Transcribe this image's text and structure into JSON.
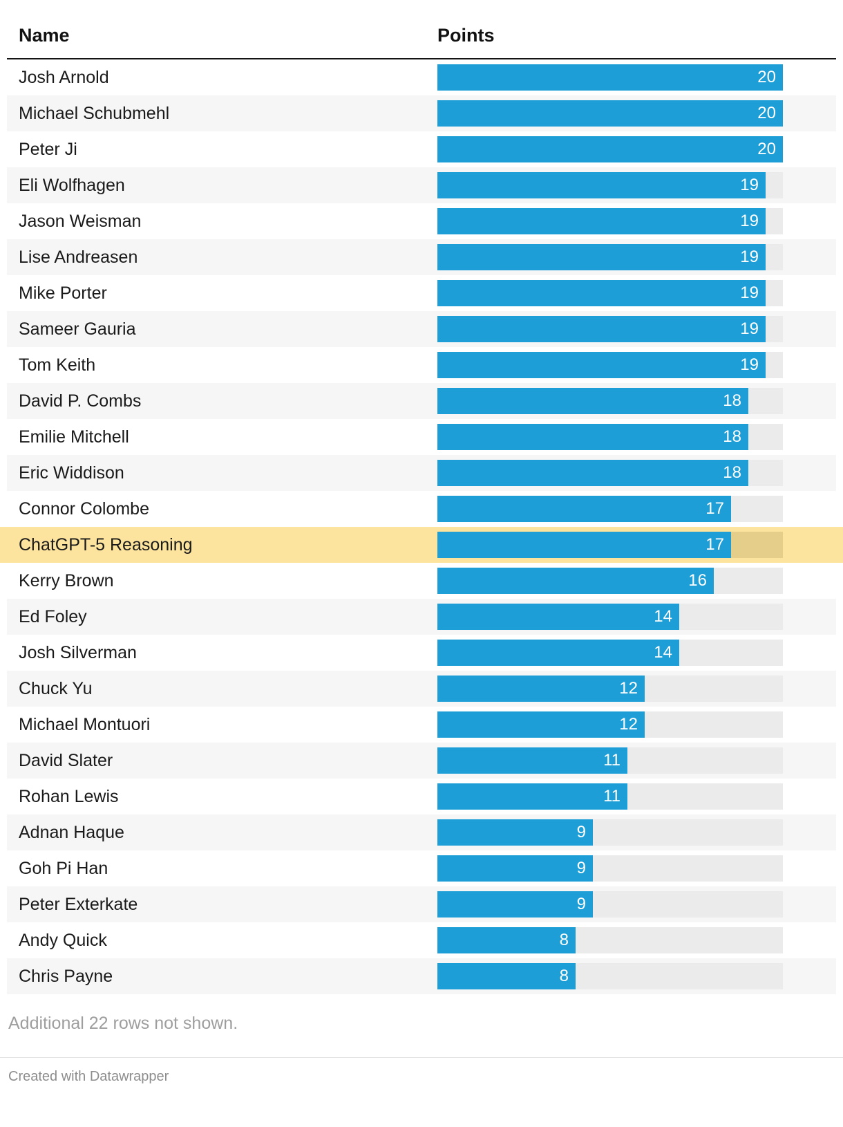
{
  "header": {
    "name_label": "Name",
    "points_label": "Points"
  },
  "footer": {
    "note": "Additional 22 rows not shown.",
    "credit": "Created with Datawrapper"
  },
  "colors": {
    "bar": "#1d9ed6",
    "track": "#ebebeb",
    "row_alt": "#f6f6f6",
    "highlight_row": "#fce49e",
    "highlight_track": "#e5cd8a",
    "value_text": "#ffffff"
  },
  "chart_data": {
    "type": "bar",
    "orientation": "horizontal",
    "title": "",
    "xlabel": "Points",
    "ylabel": "Name",
    "max_value": 20,
    "highlighted_row": "ChatGPT-5 Reasoning",
    "rows": [
      {
        "name": "Josh Arnold",
        "points": 20,
        "highlight": false
      },
      {
        "name": "Michael Schubmehl",
        "points": 20,
        "highlight": false
      },
      {
        "name": "Peter Ji",
        "points": 20,
        "highlight": false
      },
      {
        "name": "Eli Wolfhagen",
        "points": 19,
        "highlight": false
      },
      {
        "name": "Jason Weisman",
        "points": 19,
        "highlight": false
      },
      {
        "name": "Lise Andreasen",
        "points": 19,
        "highlight": false
      },
      {
        "name": "Mike Porter",
        "points": 19,
        "highlight": false
      },
      {
        "name": "Sameer Gauria",
        "points": 19,
        "highlight": false
      },
      {
        "name": "Tom Keith",
        "points": 19,
        "highlight": false
      },
      {
        "name": "David P. Combs",
        "points": 18,
        "highlight": false
      },
      {
        "name": "Emilie Mitchell",
        "points": 18,
        "highlight": false
      },
      {
        "name": "Eric Widdison",
        "points": 18,
        "highlight": false
      },
      {
        "name": "Connor Colombe",
        "points": 17,
        "highlight": false
      },
      {
        "name": "ChatGPT-5 Reasoning",
        "points": 17,
        "highlight": true
      },
      {
        "name": "Kerry Brown",
        "points": 16,
        "highlight": false
      },
      {
        "name": "Ed Foley",
        "points": 14,
        "highlight": false
      },
      {
        "name": "Josh Silverman",
        "points": 14,
        "highlight": false
      },
      {
        "name": "Chuck Yu",
        "points": 12,
        "highlight": false
      },
      {
        "name": "Michael Montuori",
        "points": 12,
        "highlight": false
      },
      {
        "name": "David Slater",
        "points": 11,
        "highlight": false
      },
      {
        "name": "Rohan Lewis",
        "points": 11,
        "highlight": false
      },
      {
        "name": "Adnan Haque",
        "points": 9,
        "highlight": false
      },
      {
        "name": "Goh Pi Han",
        "points": 9,
        "highlight": false
      },
      {
        "name": "Peter Exterkate",
        "points": 9,
        "highlight": false
      },
      {
        "name": "Andy Quick",
        "points": 8,
        "highlight": false
      },
      {
        "name": "Chris Payne",
        "points": 8,
        "highlight": false
      }
    ]
  }
}
